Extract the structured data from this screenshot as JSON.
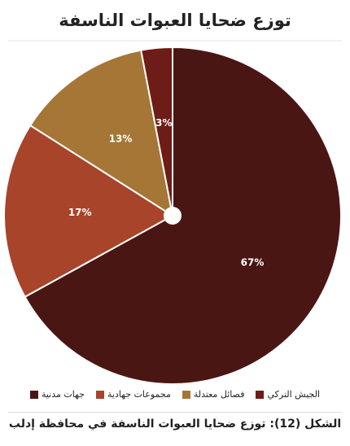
{
  "chart_data": {
    "type": "pie",
    "title": "توزع ضحايا العبوات الناسفة",
    "categories": [
      "جهات مدنية",
      "مجموعات جهادية",
      "فصائل معتدلة",
      "الجيش التركي"
    ],
    "values": [
      67,
      17,
      13,
      3
    ],
    "value_labels": [
      "67%",
      "17%",
      "13%",
      "3%"
    ],
    "colors": [
      "#4a1614",
      "#a8442a",
      "#a57636",
      "#6e1c17"
    ],
    "caption": "الشكل (12): توزع ضحايا العبوات الناسفة في محافظة إدلب"
  }
}
